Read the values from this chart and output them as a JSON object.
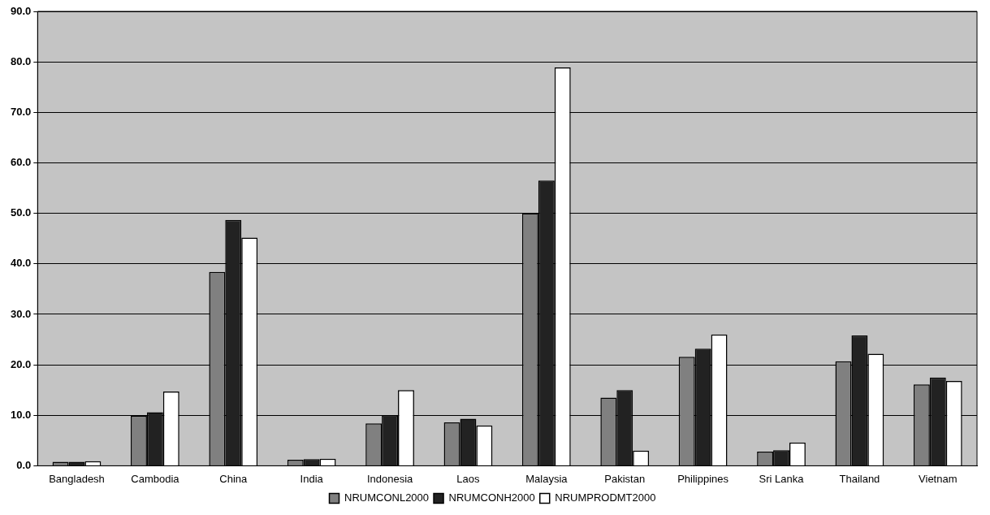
{
  "chart_data": {
    "type": "bar",
    "categories": [
      "Bangladesh",
      "Cambodia",
      "China",
      "India",
      "Indonesia",
      "Laos",
      "Malaysia",
      "Pakistan",
      "Philippines",
      "Sri Lanka",
      "Thailand",
      "Vietnam"
    ],
    "series": [
      {
        "name": "NRUMCONL2000",
        "color": "#808080",
        "values": [
          0.8,
          9.9,
          38.4,
          1.2,
          8.4,
          8.6,
          50.0,
          13.5,
          21.6,
          2.8,
          20.7,
          16.1
        ]
      },
      {
        "name": "NRUMCONH2000",
        "color": "#222222",
        "values": [
          0.8,
          10.6,
          48.7,
          1.3,
          10.0,
          9.3,
          56.5,
          15.0,
          23.2,
          3.1,
          25.8,
          17.5
        ]
      },
      {
        "name": "NRUMPRODMT2000",
        "color": "#ffffff",
        "values": [
          0.9,
          14.7,
          45.2,
          1.4,
          15.0,
          8.0,
          78.9,
          3.0,
          26.0,
          4.6,
          22.2,
          16.8
        ]
      }
    ],
    "ylim": [
      0,
      90
    ],
    "yticks": [
      {
        "value": 0,
        "label": "0.0"
      },
      {
        "value": 10,
        "label": "10.0"
      },
      {
        "value": 20,
        "label": "20.0"
      },
      {
        "value": 30,
        "label": "30.0"
      },
      {
        "value": 40,
        "label": "40.0"
      },
      {
        "value": 50,
        "label": "50.0"
      },
      {
        "value": 60,
        "label": "60.0"
      },
      {
        "value": 70,
        "label": "70.0"
      },
      {
        "value": 80,
        "label": "80.0"
      },
      {
        "value": 90,
        "label": "90.0"
      }
    ],
    "grid": "y",
    "legend": "bottom"
  }
}
